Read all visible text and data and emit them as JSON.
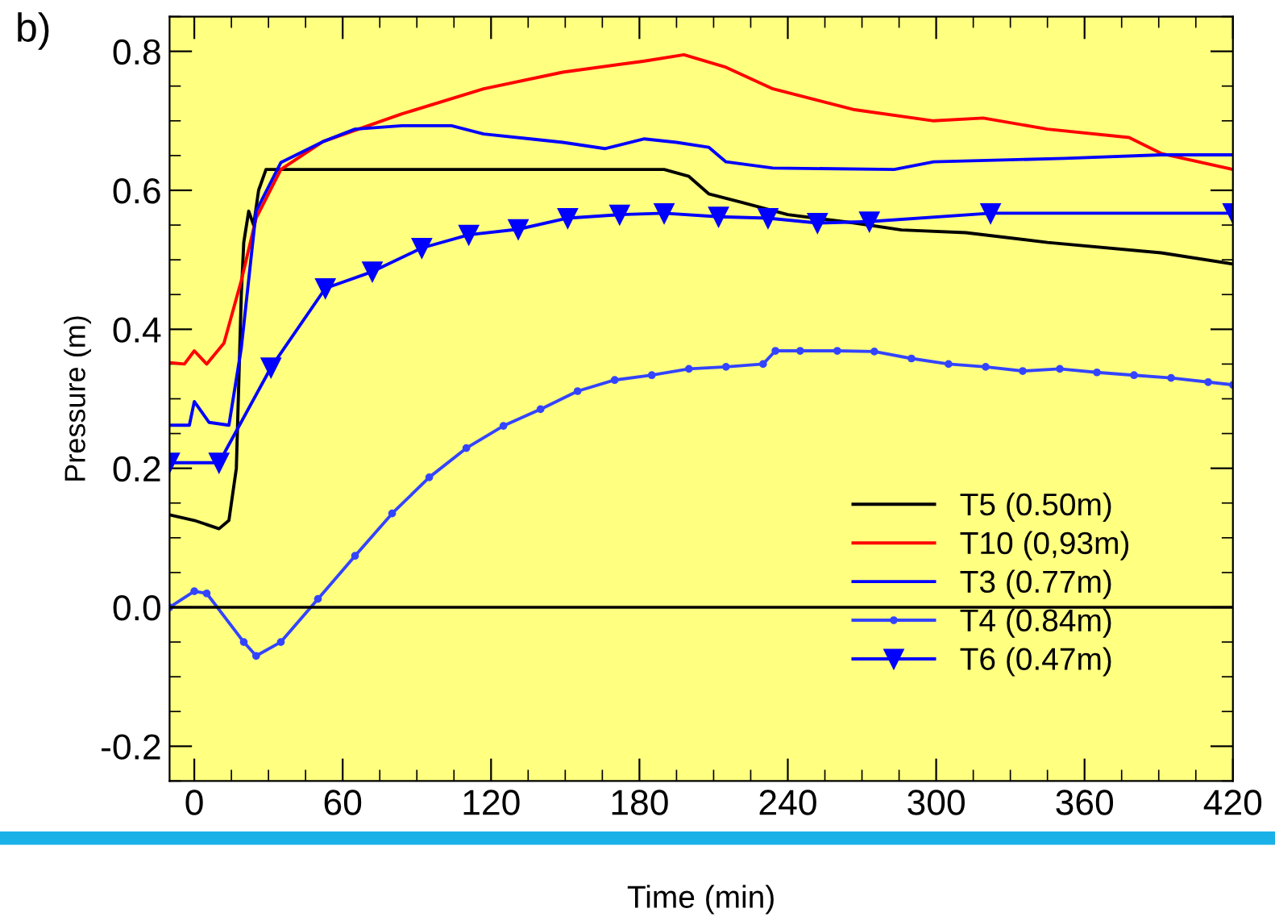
{
  "chart_data": {
    "type": "line",
    "xlabel": "Time (min)",
    "ylabel": "Pressure (m)",
    "annotations": [
      "b)"
    ],
    "xlim": [
      -10,
      420
    ],
    "xticks": [
      0,
      60,
      120,
      180,
      240,
      300,
      360,
      420
    ],
    "ylim": [
      -0.25,
      0.85
    ],
    "yticks": [
      {
        "value": -0.2,
        "label": "-0.2"
      },
      {
        "value": 0,
        "label": "0.0"
      },
      {
        "value": 0.2,
        "label": "0.2"
      },
      {
        "value": 0.4,
        "label": "0.4"
      },
      {
        "value": 0.6,
        "label": "0.6"
      },
      {
        "value": 0.8,
        "label": "0.8"
      }
    ],
    "grid": false,
    "legend": "bottom right",
    "ref_lines": [
      {
        "axis": "y",
        "value": 0,
        "color": "#000000"
      }
    ],
    "series": [
      {
        "name": "T5 (0.50m)",
        "color": "#000000",
        "marker": "none",
        "x": [
          -10,
          0,
          10,
          14,
          17,
          19,
          20,
          22,
          24,
          26,
          29,
          40,
          80,
          120,
          160,
          190,
          200,
          208,
          221,
          240,
          267,
          286,
          312,
          345,
          391,
          420
        ],
        "values": [
          0.133,
          0.125,
          0.113,
          0.125,
          0.2,
          0.45,
          0.525,
          0.57,
          0.55,
          0.6,
          0.63,
          0.63,
          0.63,
          0.63,
          0.63,
          0.63,
          0.62,
          0.595,
          0.583,
          0.565,
          0.553,
          0.543,
          0.539,
          0.525,
          0.51,
          0.494
        ]
      },
      {
        "name": "T10 (0,93m)",
        "color": "#ff0000",
        "marker": "none",
        "x": [
          -10,
          -4,
          0,
          5,
          12,
          19,
          25,
          35,
          52,
          84,
          117,
          149,
          182,
          198,
          215,
          234,
          267,
          299,
          319,
          345,
          378,
          391,
          420
        ],
        "values": [
          0.352,
          0.35,
          0.369,
          0.35,
          0.38,
          0.47,
          0.56,
          0.63,
          0.67,
          0.71,
          0.746,
          0.77,
          0.786,
          0.795,
          0.777,
          0.746,
          0.716,
          0.7,
          0.704,
          0.688,
          0.676,
          0.653,
          0.63
        ]
      },
      {
        "name": "T3 (0.77m)",
        "color": "#0000ff",
        "marker": "none",
        "x": [
          -10,
          -2,
          0,
          6,
          14,
          19,
          25,
          35,
          52,
          65,
          84,
          104,
          117,
          136,
          149,
          166,
          182,
          195,
          208,
          215,
          234,
          283,
          299,
          352,
          391,
          420
        ],
        "values": [
          0.262,
          0.262,
          0.296,
          0.266,
          0.262,
          0.373,
          0.57,
          0.64,
          0.67,
          0.688,
          0.693,
          0.693,
          0.681,
          0.674,
          0.669,
          0.66,
          0.674,
          0.669,
          0.662,
          0.641,
          0.632,
          0.63,
          0.641,
          0.646,
          0.651,
          0.651
        ]
      },
      {
        "name": "T4 (0.84m)",
        "color": "#3344ff",
        "marker": "circle",
        "x": [
          -10,
          0,
          5,
          20,
          25,
          35,
          50,
          65,
          80,
          95,
          110,
          125,
          140,
          155,
          170,
          185,
          200,
          215,
          230,
          235,
          245,
          260,
          275,
          290,
          305,
          320,
          335,
          350,
          365,
          380,
          395,
          410,
          420
        ],
        "values": [
          0.0,
          0.023,
          0.02,
          -0.05,
          -0.07,
          -0.05,
          0.012,
          0.074,
          0.135,
          0.187,
          0.229,
          0.261,
          0.285,
          0.311,
          0.327,
          0.334,
          0.343,
          0.346,
          0.35,
          0.369,
          0.369,
          0.369,
          0.368,
          0.358,
          0.35,
          0.346,
          0.34,
          0.343,
          0.338,
          0.334,
          0.33,
          0.324,
          0.32
        ]
      },
      {
        "name": "T6 (0.47m)",
        "color": "#0000ff",
        "marker": "triangle",
        "x": [
          -10,
          10,
          31,
          53,
          72,
          92,
          111,
          131,
          151,
          172,
          190,
          212,
          232,
          252,
          273,
          322,
          420
        ],
        "values": [
          0.208,
          0.208,
          0.345,
          0.459,
          0.483,
          0.517,
          0.536,
          0.544,
          0.56,
          0.565,
          0.567,
          0.562,
          0.56,
          0.553,
          0.555,
          0.567,
          0.567
        ]
      }
    ]
  }
}
